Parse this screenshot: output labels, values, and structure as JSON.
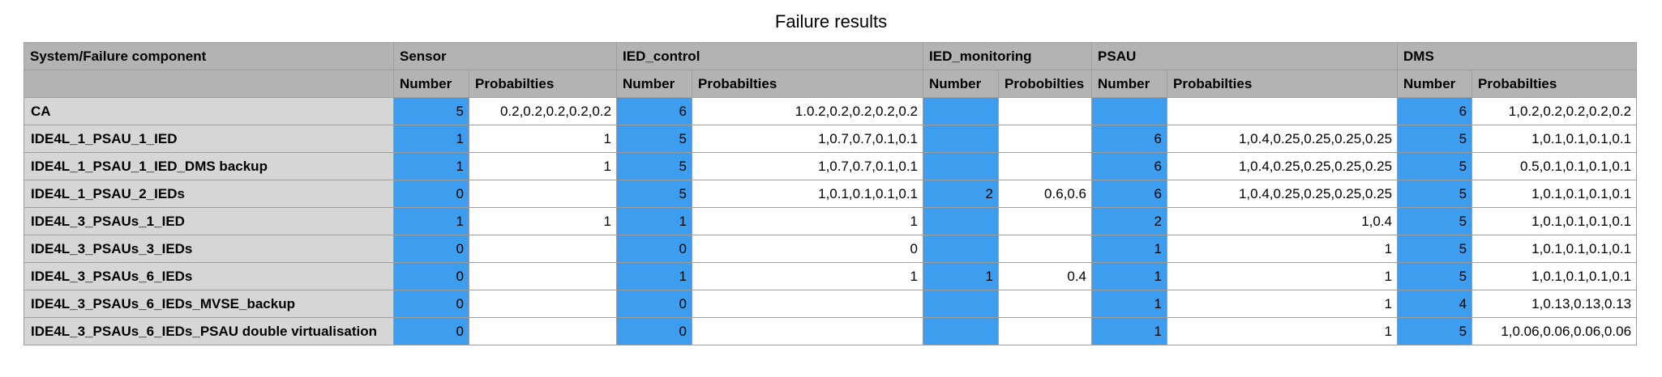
{
  "title": "Failure results",
  "table": {
    "corner_label": "System/Failure component",
    "groups": [
      {
        "label": "Sensor",
        "sub": [
          "Number",
          "Probabilties"
        ]
      },
      {
        "label": "IED_control",
        "sub": [
          "Number",
          "Probabilties"
        ]
      },
      {
        "label": "IED_monitoring",
        "sub": [
          "Number",
          "Probobilties"
        ]
      },
      {
        "label": "PSAU",
        "sub": [
          "Number",
          "Probabilties"
        ]
      },
      {
        "label": "DMS",
        "sub": [
          "Number",
          "Probabilties"
        ]
      }
    ],
    "rows": [
      {
        "name": "CA",
        "cells": [
          "5",
          "0.2,0.2,0.2,0.2,0.2",
          "6",
          "1.0.2,0.2,0.2,0.2,0.2",
          "",
          "",
          "",
          "",
          "6",
          "1,0.2,0.2,0.2,0.2,0.2"
        ]
      },
      {
        "name": "IDE4L_1_PSAU_1_IED",
        "cells": [
          "1",
          "1",
          "5",
          "1,0.7,0.7,0.1,0.1",
          "",
          "",
          "6",
          "1,0.4,0.25,0.25,0.25,0.25",
          "5",
          "1,0.1,0.1,0.1,0.1"
        ]
      },
      {
        "name": "IDE4L_1_PSAU_1_IED_DMS backup",
        "cells": [
          "1",
          "1",
          "5",
          "1,0.7,0.7,0.1,0.1",
          "",
          "",
          "6",
          "1,0.4,0.25,0.25,0.25,0.25",
          "5",
          "0.5,0.1,0.1,0.1,0.1"
        ]
      },
      {
        "name": "IDE4L_1_PSAU_2_IEDs",
        "cells": [
          "0",
          "",
          "5",
          "1,0.1,0.1,0.1,0.1",
          "2",
          "0.6,0.6",
          "6",
          "1,0.4,0.25,0.25,0.25,0.25",
          "5",
          "1,0.1,0.1,0.1,0.1"
        ]
      },
      {
        "name": "IDE4L_3_PSAUs_1_IED",
        "cells": [
          "1",
          "1",
          "1",
          "1",
          "",
          "",
          "2",
          "1,0.4",
          "5",
          "1,0.1,0.1,0.1,0.1"
        ]
      },
      {
        "name": "IDE4L_3_PSAUs_3_IEDs",
        "cells": [
          "0",
          "",
          "0",
          "0",
          "",
          "",
          "1",
          "1",
          "5",
          "1,0.1,0.1,0.1,0.1"
        ]
      },
      {
        "name": "IDE4L_3_PSAUs_6_IEDs",
        "cells": [
          "0",
          "",
          "1",
          "1",
          "1",
          "0.4",
          "1",
          "1",
          "5",
          "1,0.1,0.1,0.1,0.1"
        ]
      },
      {
        "name": "IDE4L_3_PSAUs_6_IEDs_MVSE_backup",
        "cells": [
          "0",
          "",
          "0",
          "",
          "",
          "",
          "1",
          "1",
          "4",
          "1,0.13,0.13,0.13"
        ]
      },
      {
        "name": "IDE4L_3_PSAUs_6_IEDs_PSAU double virtualisation",
        "cells": [
          "0",
          "",
          "0",
          "",
          "",
          "",
          "1",
          "1",
          "5",
          "1,0.06,0.06,0.06,0.06"
        ]
      }
    ]
  }
}
